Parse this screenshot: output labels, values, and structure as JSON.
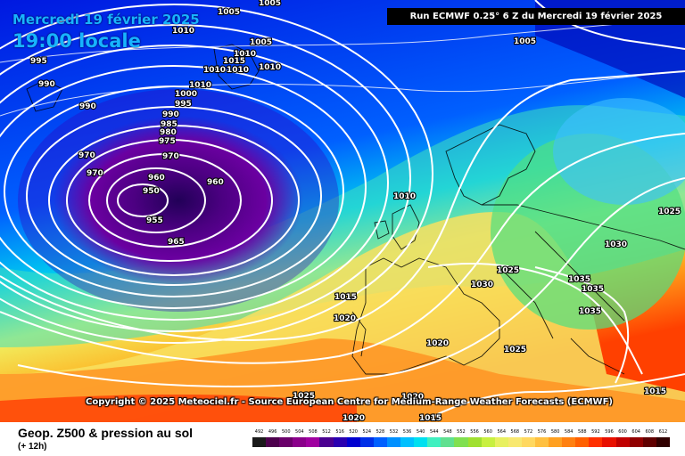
{
  "title": {
    "date": "Mercredi 19 février 2025",
    "time": "19:00 locale"
  },
  "run_info": "Run ECMWF 0.25° 6 Z du Mercredi 19 février 2025",
  "copyright": "Copyright © 2025 Meteociel.fr - Source European Centre for Medium-Range Weather Forecasts (ECMWF)",
  "footer": {
    "title": "Geop. Z500 & pression au sol",
    "subtitle": "(+ 12h)"
  },
  "isobar_labels": [
    "1005",
    "1005",
    "1010",
    "1005",
    "1010",
    "1015",
    "1010",
    "1010",
    "1010",
    "1010",
    "995",
    "990",
    "1000",
    "995",
    "990",
    "990",
    "985",
    "980",
    "975",
    "970",
    "970",
    "970",
    "960",
    "960",
    "950",
    "955",
    "965",
    "1010",
    "1005",
    "1025",
    "1030",
    "1035",
    "1035",
    "1035",
    "1025",
    "1015",
    "1020",
    "1030",
    "1020",
    "1025",
    "1020",
    "1025",
    "1015",
    "1020",
    "1015"
  ],
  "legend": {
    "labels": [
      "492",
      "496",
      "500",
      "504",
      "508",
      "512",
      "516",
      "520",
      "524",
      "528",
      "532",
      "536",
      "540",
      "544",
      "548",
      "552",
      "556",
      "560",
      "564",
      "568",
      "572",
      "576",
      "580",
      "584",
      "588",
      "592",
      "596",
      "600",
      "604",
      "608",
      "612"
    ],
    "colors": [
      "#1a1a1a",
      "#4d004d",
      "#6a006a",
      "#8a008a",
      "#a000a0",
      "#4a0090",
      "#2a00b0",
      "#0000d0",
      "#0030e8",
      "#0060ff",
      "#0090ff",
      "#00c0ff",
      "#00e0f0",
      "#40f0c0",
      "#60e090",
      "#80e050",
      "#a0e030",
      "#c8f040",
      "#e8f060",
      "#f8e870",
      "#ffd860",
      "#ffc040",
      "#ffa020",
      "#ff8010",
      "#ff6000",
      "#ff3000",
      "#e81000",
      "#c00000",
      "#900000",
      "#600000",
      "#300000"
    ]
  }
}
